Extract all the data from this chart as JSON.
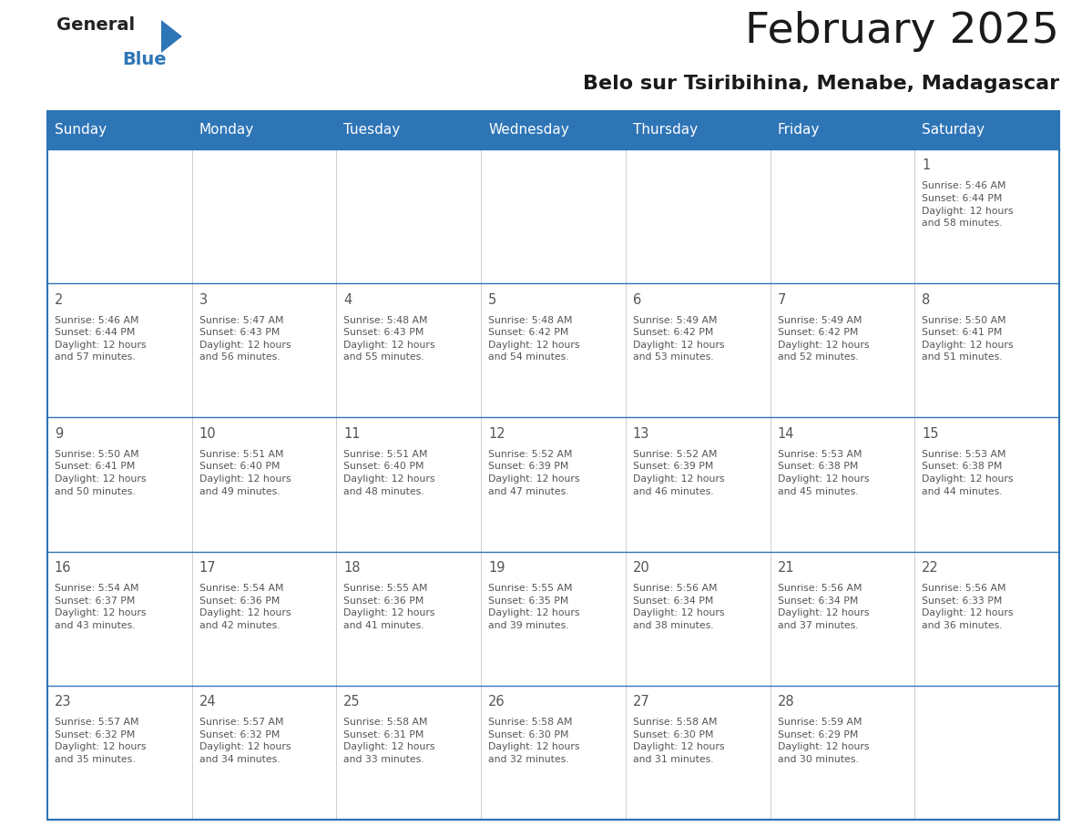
{
  "title": "February 2025",
  "subtitle": "Belo sur Tsiribihina, Menabe, Madagascar",
  "header_color": "#2E75B6",
  "header_text_color": "#FFFFFF",
  "cell_bg_white": "#FFFFFF",
  "cell_bg_gray": "#F0F0F0",
  "border_color": "#2E75B6",
  "row_divider_color": "#2E75B6",
  "text_color": "#555555",
  "days_of_week": [
    "Sunday",
    "Monday",
    "Tuesday",
    "Wednesday",
    "Thursday",
    "Friday",
    "Saturday"
  ],
  "weeks": [
    [
      {
        "day": null,
        "info": null
      },
      {
        "day": null,
        "info": null
      },
      {
        "day": null,
        "info": null
      },
      {
        "day": null,
        "info": null
      },
      {
        "day": null,
        "info": null
      },
      {
        "day": null,
        "info": null
      },
      {
        "day": "1",
        "info": "Sunrise: 5:46 AM\nSunset: 6:44 PM\nDaylight: 12 hours\nand 58 minutes."
      }
    ],
    [
      {
        "day": "2",
        "info": "Sunrise: 5:46 AM\nSunset: 6:44 PM\nDaylight: 12 hours\nand 57 minutes."
      },
      {
        "day": "3",
        "info": "Sunrise: 5:47 AM\nSunset: 6:43 PM\nDaylight: 12 hours\nand 56 minutes."
      },
      {
        "day": "4",
        "info": "Sunrise: 5:48 AM\nSunset: 6:43 PM\nDaylight: 12 hours\nand 55 minutes."
      },
      {
        "day": "5",
        "info": "Sunrise: 5:48 AM\nSunset: 6:42 PM\nDaylight: 12 hours\nand 54 minutes."
      },
      {
        "day": "6",
        "info": "Sunrise: 5:49 AM\nSunset: 6:42 PM\nDaylight: 12 hours\nand 53 minutes."
      },
      {
        "day": "7",
        "info": "Sunrise: 5:49 AM\nSunset: 6:42 PM\nDaylight: 12 hours\nand 52 minutes."
      },
      {
        "day": "8",
        "info": "Sunrise: 5:50 AM\nSunset: 6:41 PM\nDaylight: 12 hours\nand 51 minutes."
      }
    ],
    [
      {
        "day": "9",
        "info": "Sunrise: 5:50 AM\nSunset: 6:41 PM\nDaylight: 12 hours\nand 50 minutes."
      },
      {
        "day": "10",
        "info": "Sunrise: 5:51 AM\nSunset: 6:40 PM\nDaylight: 12 hours\nand 49 minutes."
      },
      {
        "day": "11",
        "info": "Sunrise: 5:51 AM\nSunset: 6:40 PM\nDaylight: 12 hours\nand 48 minutes."
      },
      {
        "day": "12",
        "info": "Sunrise: 5:52 AM\nSunset: 6:39 PM\nDaylight: 12 hours\nand 47 minutes."
      },
      {
        "day": "13",
        "info": "Sunrise: 5:52 AM\nSunset: 6:39 PM\nDaylight: 12 hours\nand 46 minutes."
      },
      {
        "day": "14",
        "info": "Sunrise: 5:53 AM\nSunset: 6:38 PM\nDaylight: 12 hours\nand 45 minutes."
      },
      {
        "day": "15",
        "info": "Sunrise: 5:53 AM\nSunset: 6:38 PM\nDaylight: 12 hours\nand 44 minutes."
      }
    ],
    [
      {
        "day": "16",
        "info": "Sunrise: 5:54 AM\nSunset: 6:37 PM\nDaylight: 12 hours\nand 43 minutes."
      },
      {
        "day": "17",
        "info": "Sunrise: 5:54 AM\nSunset: 6:36 PM\nDaylight: 12 hours\nand 42 minutes."
      },
      {
        "day": "18",
        "info": "Sunrise: 5:55 AM\nSunset: 6:36 PM\nDaylight: 12 hours\nand 41 minutes."
      },
      {
        "day": "19",
        "info": "Sunrise: 5:55 AM\nSunset: 6:35 PM\nDaylight: 12 hours\nand 39 minutes."
      },
      {
        "day": "20",
        "info": "Sunrise: 5:56 AM\nSunset: 6:34 PM\nDaylight: 12 hours\nand 38 minutes."
      },
      {
        "day": "21",
        "info": "Sunrise: 5:56 AM\nSunset: 6:34 PM\nDaylight: 12 hours\nand 37 minutes."
      },
      {
        "day": "22",
        "info": "Sunrise: 5:56 AM\nSunset: 6:33 PM\nDaylight: 12 hours\nand 36 minutes."
      }
    ],
    [
      {
        "day": "23",
        "info": "Sunrise: 5:57 AM\nSunset: 6:32 PM\nDaylight: 12 hours\nand 35 minutes."
      },
      {
        "day": "24",
        "info": "Sunrise: 5:57 AM\nSunset: 6:32 PM\nDaylight: 12 hours\nand 34 minutes."
      },
      {
        "day": "25",
        "info": "Sunrise: 5:58 AM\nSunset: 6:31 PM\nDaylight: 12 hours\nand 33 minutes."
      },
      {
        "day": "26",
        "info": "Sunrise: 5:58 AM\nSunset: 6:30 PM\nDaylight: 12 hours\nand 32 minutes."
      },
      {
        "day": "27",
        "info": "Sunrise: 5:58 AM\nSunset: 6:30 PM\nDaylight: 12 hours\nand 31 minutes."
      },
      {
        "day": "28",
        "info": "Sunrise: 5:59 AM\nSunset: 6:29 PM\nDaylight: 12 hours\nand 30 minutes."
      },
      {
        "day": null,
        "info": null
      }
    ]
  ],
  "logo_general_color": "#222222",
  "logo_blue_color": "#2E75B6",
  "fig_width": 11.88,
  "fig_height": 9.18
}
